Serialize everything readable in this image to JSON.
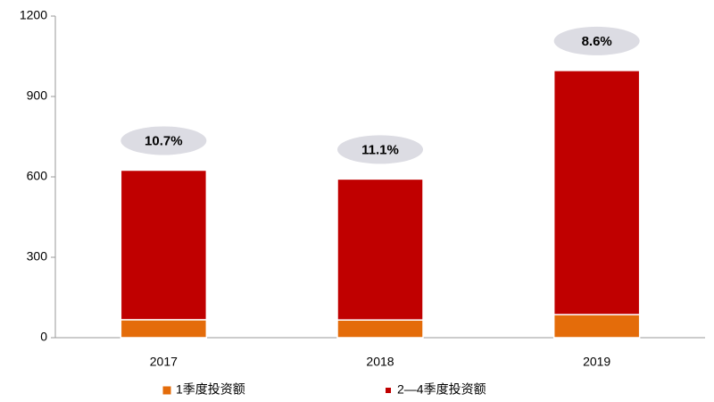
{
  "chart_data": {
    "type": "bar",
    "stacked": true,
    "categories": [
      "2017",
      "2018",
      "2019"
    ],
    "series": [
      {
        "name": "1季度投资额",
        "color": "#e46c0a",
        "values": [
          67,
          66,
          86
        ]
      },
      {
        "name": "2—4季度投资额",
        "color": "#c00000",
        "values": [
          558,
          526,
          911
        ]
      }
    ],
    "annotations": [
      "10.7%",
      "11.1%",
      "8.6%"
    ],
    "ylim": [
      0,
      1200
    ],
    "yticks": [
      0,
      300,
      600,
      900,
      1200
    ],
    "grid": false,
    "legend": "bottom"
  }
}
